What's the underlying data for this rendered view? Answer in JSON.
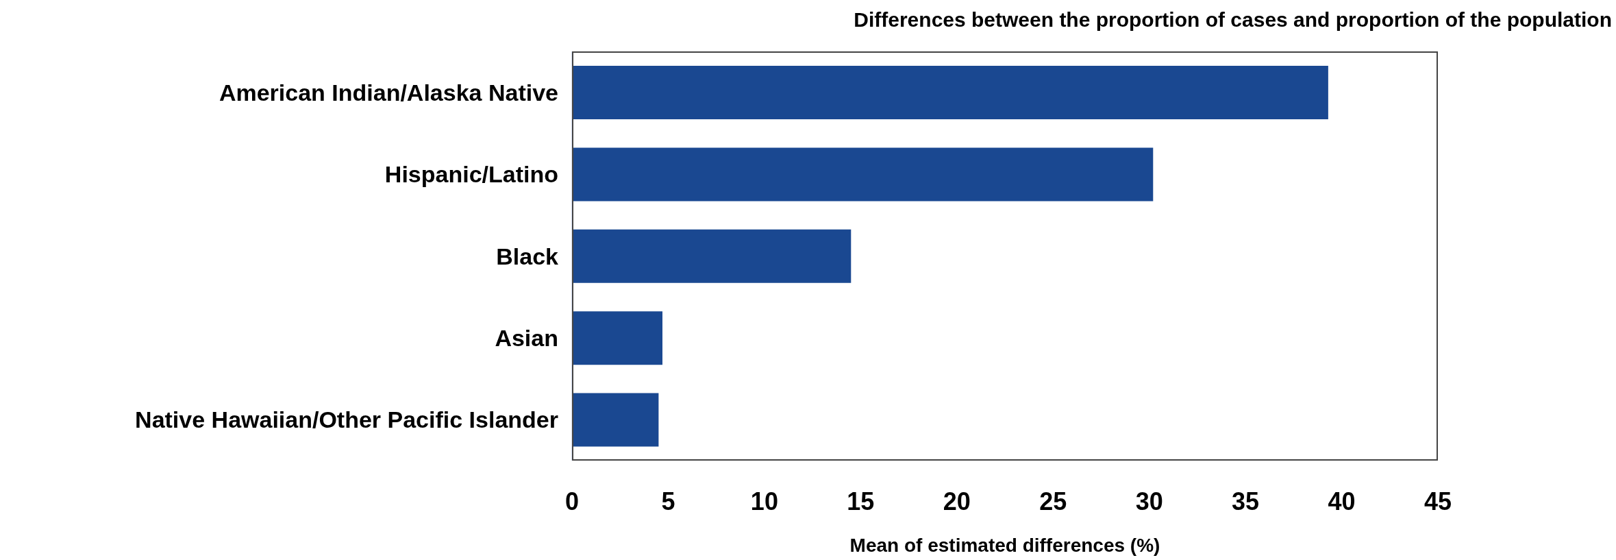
{
  "chart_data": {
    "type": "bar",
    "orientation": "horizontal",
    "title": "Differences between the proportion of cases and proportion of the population",
    "xlabel": "Mean of estimated differences (%)",
    "categories": [
      "American Indian/Alaska Native",
      "Hispanic/Latino",
      "Black",
      "Asian",
      "Native Hawaiian/Other Pacific Islander"
    ],
    "values": [
      39.3,
      30.2,
      14.5,
      4.7,
      4.5
    ],
    "color": "#1a4891",
    "xlim": [
      0,
      45
    ],
    "xticks": [
      0,
      5,
      10,
      15,
      20,
      25,
      30,
      35,
      40,
      45
    ],
    "grid": false
  }
}
